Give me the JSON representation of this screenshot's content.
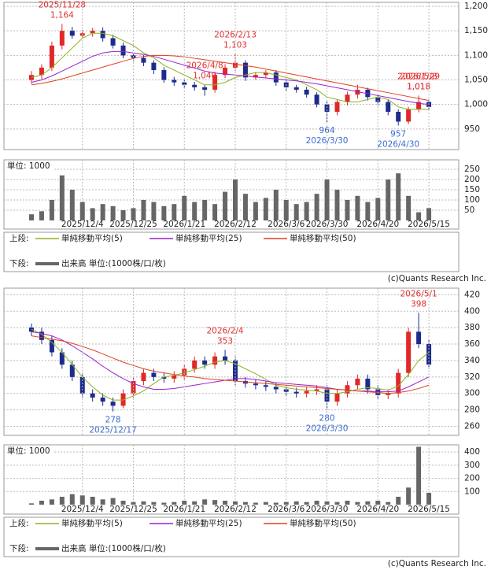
{
  "chart_data": [
    {
      "type": "candlestick",
      "open": [
        1050,
        1060,
        1075,
        1120,
        1150,
        1140,
        1145,
        1150,
        1135,
        1120,
        1100,
        1095,
        1085,
        1070,
        1050,
        1045,
        1040,
        1035,
        1030,
        1060,
        1075,
        1085,
        1055,
        1060,
        1065,
        1045,
        1035,
        1030,
        1020,
        1000,
        985,
        1005,
        1020,
        1030,
        1015,
        1005,
        985,
        965,
        990,
        1005
      ],
      "high": [
        1068,
        1082,
        1128,
        1164,
        1158,
        1152,
        1156,
        1157,
        1142,
        1126,
        1105,
        1100,
        1090,
        1076,
        1056,
        1050,
        1046,
        1040,
        1066,
        1082,
        1103,
        1090,
        1066,
        1070,
        1070,
        1050,
        1040,
        1036,
        1025,
        1006,
        1010,
        1026,
        1040,
        1034,
        1020,
        1010,
        990,
        995,
        1018,
        1010
      ],
      "low": [
        1042,
        1052,
        1068,
        1112,
        1134,
        1134,
        1138,
        1128,
        1114,
        1094,
        1088,
        1078,
        1062,
        1044,
        1038,
        1034,
        1028,
        1018,
        1024,
        1054,
        1068,
        1048,
        1050,
        1054,
        1038,
        1028,
        1024,
        1014,
        994,
        964,
        978,
        998,
        1012,
        1008,
        998,
        978,
        957,
        960,
        984,
        988
      ],
      "close": [
        1060,
        1075,
        1120,
        1150,
        1140,
        1145,
        1150,
        1135,
        1120,
        1100,
        1095,
        1085,
        1070,
        1050,
        1045,
        1040,
        1035,
        1030,
        1060,
        1075,
        1085,
        1055,
        1060,
        1065,
        1045,
        1035,
        1030,
        1020,
        1000,
        985,
        1005,
        1020,
        1030,
        1015,
        1005,
        985,
        965,
        990,
        1005,
        995
      ],
      "up_color": "#e02828",
      "down_color": "#1c2c8c",
      "series": [
        {
          "name": "単純移動平均(5)",
          "color": "#8cb41e",
          "values": [
            1055,
            1060,
            1075,
            1095,
            1115,
            1135,
            1145,
            1145,
            1140,
            1130,
            1120,
            1105,
            1095,
            1080,
            1070,
            1060,
            1050,
            1040,
            1040,
            1045,
            1055,
            1060,
            1065,
            1065,
            1060,
            1055,
            1050,
            1040,
            1030,
            1015,
            1010,
            1005,
            1005,
            1010,
            1015,
            1010,
            995,
            990,
            990,
            990
          ]
        },
        {
          "name": "単純移動平均(25)",
          "color": "#9b1fd0",
          "values": [
            1045,
            1050,
            1058,
            1068,
            1078,
            1088,
            1098,
            1105,
            1108,
            1108,
            1105,
            1102,
            1098,
            1092,
            1086,
            1080,
            1074,
            1068,
            1064,
            1062,
            1060,
            1058,
            1056,
            1054,
            1052,
            1050,
            1048,
            1045,
            1042,
            1038,
            1034,
            1030,
            1026,
            1022,
            1018,
            1014,
            1010,
            1006,
            1002,
            1000
          ]
        },
        {
          "name": "単純移動平均(50)",
          "color": "#e0401e",
          "values": [
            1040,
            1043,
            1047,
            1052,
            1058,
            1064,
            1070,
            1076,
            1082,
            1088,
            1094,
            1098,
            1100,
            1100,
            1099,
            1097,
            1094,
            1091,
            1088,
            1085,
            1082,
            1079,
            1076,
            1072,
            1068,
            1064,
            1060,
            1056,
            1052,
            1048,
            1044,
            1040,
            1036,
            1032,
            1028,
            1024,
            1020,
            1016,
            1012,
            1008
          ]
        }
      ],
      "ylim": [
        908,
        1208
      ],
      "yticks": [
        950,
        {
          "value": 1000,
          "label": "1,000"
        },
        {
          "value": 1050,
          "label": "1,050"
        },
        {
          "value": 1100,
          "label": "1,100"
        },
        {
          "value": 1150,
          "label": "1,150"
        },
        {
          "value": 1200,
          "label": "1,200"
        }
      ],
      "grid": true,
      "legend_label": "上段:",
      "annotations": [
        {
          "date": "2025/11/28",
          "value": 1164,
          "value_label": "1,164"
        },
        {
          "date": "2026/1/29",
          "value": 1018,
          "value_label": "1,018"
        },
        {
          "date": "2026/2/13",
          "value": 1103,
          "value_label": "1,103"
        },
        {
          "date": "2026/3/30",
          "value": 964
        },
        {
          "date": "2026/4/8",
          "value": 1040,
          "value_label": "1,040"
        },
        {
          "date": "2026/4/30",
          "value": 957
        },
        {
          "date": "2026/5/8",
          "value": 1018,
          "value_label": "1,018"
        }
      ]
    },
    {
      "type": "bar",
      "unit_label": "単位: 1000",
      "legend_label": "下段:",
      "categories": [
        null,
        null,
        null,
        null,
        null,
        "2025/12/4",
        null,
        null,
        null,
        null,
        "2025/12/25",
        null,
        null,
        null,
        null,
        "2026/1/21",
        null,
        null,
        null,
        null,
        "2026/2/12",
        null,
        null,
        null,
        null,
        "2026/3/6",
        null,
        null,
        null,
        "2026/3/30",
        null,
        null,
        null,
        null,
        "2026/4/20",
        null,
        null,
        null,
        null,
        "2026/5/15"
      ],
      "series": [
        {
          "name": "出来高 単位:(1000株/口/枚)",
          "color": "#666666",
          "values": [
            30,
            45,
            100,
            220,
            150,
            90,
            60,
            80,
            70,
            50,
            60,
            100,
            90,
            70,
            80,
            120,
            90,
            100,
            80,
            140,
            200,
            130,
            90,
            110,
            150,
            100,
            80,
            90,
            130,
            200,
            150,
            100,
            120,
            90,
            110,
            200,
            230,
            120,
            40,
            60
          ]
        }
      ],
      "ylim": [
        0,
        296
      ],
      "yticks": [
        50,
        100,
        150,
        200,
        250
      ],
      "grid": true,
      "source": "(c)Quants Research Inc."
    },
    {
      "type": "candlestick",
      "open": [
        380,
        375,
        365,
        350,
        335,
        320,
        300,
        295,
        290,
        285,
        300,
        315,
        325,
        320,
        318,
        322,
        330,
        340,
        335,
        345,
        340,
        315,
        312,
        310,
        308,
        305,
        302,
        300,
        303,
        305,
        290,
        300,
        310,
        318,
        305,
        298,
        300,
        325,
        375,
        360
      ],
      "high": [
        385,
        380,
        370,
        355,
        340,
        325,
        305,
        300,
        295,
        305,
        320,
        330,
        330,
        325,
        327,
        335,
        345,
        345,
        350,
        353,
        345,
        320,
        317,
        315,
        313,
        310,
        307,
        308,
        310,
        310,
        305,
        315,
        323,
        323,
        310,
        305,
        330,
        380,
        398,
        365
      ],
      "low": [
        370,
        360,
        345,
        330,
        315,
        295,
        290,
        285,
        278,
        282,
        295,
        310,
        315,
        313,
        313,
        317,
        325,
        330,
        330,
        335,
        310,
        307,
        305,
        303,
        300,
        297,
        295,
        295,
        298,
        280,
        285,
        295,
        305,
        300,
        293,
        293,
        295,
        320,
        355,
        330
      ],
      "close": [
        375,
        365,
        350,
        335,
        320,
        300,
        295,
        290,
        285,
        300,
        315,
        325,
        320,
        318,
        322,
        330,
        340,
        335,
        345,
        340,
        315,
        312,
        310,
        308,
        305,
        302,
        300,
        303,
        305,
        290,
        300,
        310,
        318,
        305,
        298,
        300,
        325,
        375,
        360,
        335
      ],
      "up_color": "#e02828",
      "down_color": "#1c2c8c",
      "series": [
        {
          "name": "単純移動平均(5)",
          "color": "#8cb41e",
          "values": [
            378,
            372,
            362,
            350,
            335,
            320,
            308,
            298,
            292,
            292,
            297,
            303,
            312,
            320,
            322,
            325,
            329,
            333,
            338,
            340,
            336,
            330,
            324,
            317,
            310,
            307,
            305,
            304,
            303,
            300,
            300,
            302,
            305,
            307,
            306,
            304,
            309,
            323,
            340,
            350
          ]
        },
        {
          "name": "単純移動平均(25)",
          "color": "#9b1fd0",
          "values": [
            375,
            373,
            370,
            365,
            358,
            350,
            342,
            333,
            325,
            318,
            312,
            308,
            305,
            305,
            306,
            308,
            310,
            312,
            314,
            316,
            318,
            318,
            317,
            315,
            313,
            312,
            311,
            310,
            309,
            307,
            305,
            304,
            303,
            303,
            302,
            302,
            303,
            308,
            314,
            320
          ]
        },
        {
          "name": "単純移動平均(50)",
          "color": "#e0401e",
          "values": [
            370,
            368,
            366,
            364,
            361,
            357,
            353,
            348,
            343,
            338,
            334,
            330,
            327,
            325,
            323,
            321,
            320,
            318,
            317,
            316,
            315,
            314,
            313,
            312,
            311,
            310,
            309,
            308,
            307,
            306,
            305,
            304,
            303,
            302,
            301,
            300,
            301,
            303,
            306,
            310
          ]
        }
      ],
      "ylim": [
        249,
        428
      ],
      "yticks": [
        260,
        280,
        300,
        320,
        340,
        360,
        380,
        400,
        420
      ],
      "grid": true,
      "legend_label": "上段:",
      "annotations": [
        {
          "date": "2025/12/17",
          "value": 278
        },
        {
          "date": "2026/2/4",
          "value": 353
        },
        {
          "date": "2026/3/30",
          "value": 280
        },
        {
          "date": "2026/5/1",
          "value": 398
        }
      ]
    },
    {
      "type": "bar",
      "unit_label": "単位: 1000",
      "legend_label": "下段:",
      "categories": [
        null,
        null,
        null,
        null,
        null,
        "2025/12/4",
        null,
        null,
        null,
        null,
        "2025/12/25",
        null,
        null,
        null,
        null,
        "2026/1/21",
        null,
        null,
        null,
        null,
        "2026/2/12",
        null,
        null,
        null,
        null,
        "2026/3/6",
        null,
        null,
        null,
        "2026/3/30",
        null,
        null,
        null,
        null,
        "2026/4/20",
        null,
        null,
        null,
        null,
        "2026/5/15"
      ],
      "series": [
        {
          "name": "出来高 単位:(1000株/口/枚)",
          "color": "#666666",
          "values": [
            10,
            30,
            40,
            60,
            80,
            70,
            60,
            40,
            50,
            30,
            20,
            25,
            20,
            15,
            20,
            30,
            25,
            40,
            35,
            30,
            25,
            20,
            15,
            20,
            15,
            20,
            25,
            20,
            30,
            25,
            20,
            30,
            20,
            25,
            30,
            20,
            60,
            130,
            440,
            90
          ]
        }
      ],
      "ylim": [
        0,
        455
      ],
      "yticks": [
        100,
        200,
        300,
        400
      ],
      "grid": true,
      "source": "(c)Quants Research Inc."
    }
  ]
}
